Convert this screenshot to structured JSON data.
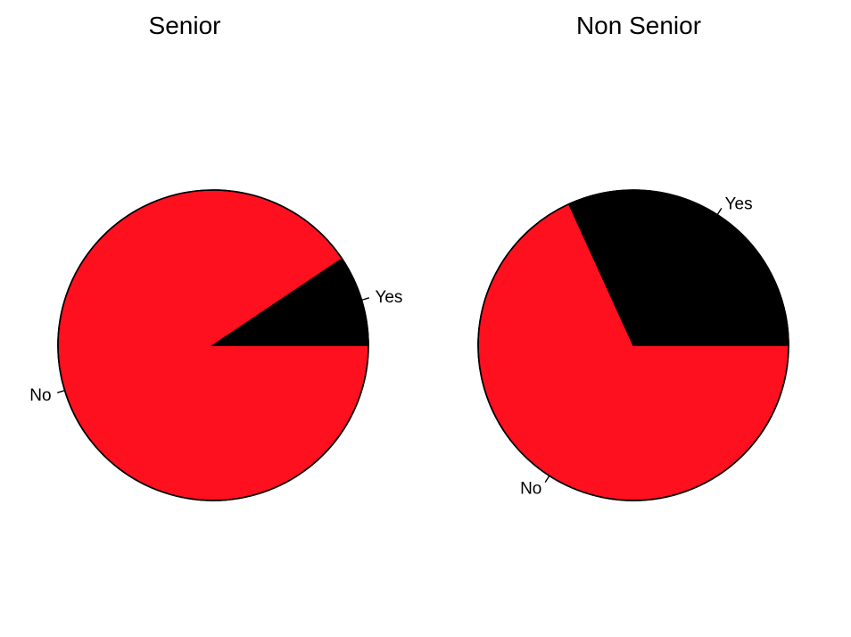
{
  "chart_data": [
    {
      "type": "pie",
      "title": "Senior",
      "categories": [
        "No",
        "Yes"
      ],
      "values": [
        90.6,
        9.4
      ],
      "colors": [
        "#ff101f",
        "#000000"
      ],
      "start_angle_deg": 0,
      "direction": "clockwise"
    },
    {
      "type": "pie",
      "title": "Non Senior",
      "categories": [
        "No",
        "Yes"
      ],
      "values": [
        68.2,
        31.8
      ],
      "colors": [
        "#ff101f",
        "#000000"
      ],
      "start_angle_deg": 0,
      "direction": "clockwise"
    }
  ]
}
